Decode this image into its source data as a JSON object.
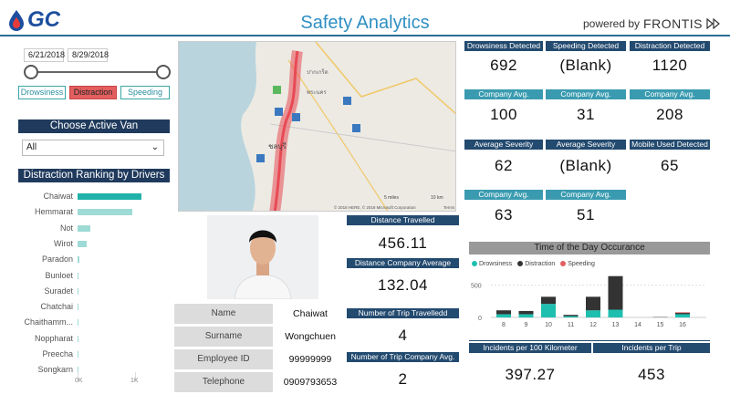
{
  "header": {
    "logo": "GC",
    "title": "Safety Analytics",
    "powered_by": "powered by",
    "brand": "FRONTIS"
  },
  "filters": {
    "date_from": "6/21/2018",
    "date_to": "8/29/2018",
    "buttons": [
      "Drowsiness",
      "Distraction",
      "Speeding"
    ],
    "active": "Distraction"
  },
  "van": {
    "header": "Choose Active Van",
    "selected": "All"
  },
  "ranking": {
    "header": "Distraction Ranking by Drivers",
    "drivers": [
      {
        "name": "Chaiwat",
        "value": 1.0,
        "color": "#20b2aa"
      },
      {
        "name": "Hemmarat",
        "value": 0.85,
        "color": "#9edbd6"
      },
      {
        "name": "Not",
        "value": 0.2,
        "color": "#9edbd6"
      },
      {
        "name": "Wirot",
        "value": 0.14,
        "color": "#9edbd6"
      },
      {
        "name": "Paradon",
        "value": 0.03,
        "color": "#9edbd6"
      },
      {
        "name": "Bunloet",
        "value": 0.02,
        "color": "#9edbd6"
      },
      {
        "name": "Suradet",
        "value": 0.02,
        "color": "#9edbd6"
      },
      {
        "name": "Chatchai",
        "value": 0.01,
        "color": "#9edbd6"
      },
      {
        "name": "Chaithamm...",
        "value": 0.01,
        "color": "#9edbd6"
      },
      {
        "name": "Noppharat",
        "value": 0.01,
        "color": "#9edbd6"
      },
      {
        "name": "Preecha",
        "value": 0.01,
        "color": "#9edbd6"
      },
      {
        "name": "Songkarn",
        "value": 0.0,
        "color": "#9edbd6"
      }
    ],
    "ticks": [
      "0K",
      "1K"
    ]
  },
  "map": {
    "labels": [
      "ปากเกร็ด",
      "พระนคร",
      "ชลบุรี"
    ],
    "scale": [
      "5 miles",
      "10 km"
    ],
    "copyright": "© 2018 HERE, © 2018 Microsoft Corporation",
    "terms": "Terms"
  },
  "driver": {
    "fields": [
      {
        "label": "Name",
        "value": "Chaiwat"
      },
      {
        "label": "Surname",
        "value": "Wongchuen"
      },
      {
        "label": "Employee ID",
        "value": "99999999"
      },
      {
        "label": "Telephone",
        "value": "0909793653"
      }
    ]
  },
  "trip": {
    "distance_label": "Distance Travelled",
    "distance": "456.11",
    "company_label": "Distance Company Average",
    "company": "132.04",
    "trips_label": "Number of Trip Travelledd",
    "trips": "4",
    "trips_company_label": "Number of Trip Company Avg.",
    "trips_company": "2"
  },
  "kpis": [
    {
      "label": "Drowsiness Detected",
      "value": "692",
      "style": "dark"
    },
    {
      "label": "Speeding Detected",
      "value": "(Blank)",
      "style": "dark"
    },
    {
      "label": "Distraction Detected",
      "value": "1120",
      "style": "dark"
    },
    {
      "label": "Company Avg. Detection",
      "value": "100",
      "style": "teal"
    },
    {
      "label": "Company Avg. Detection",
      "value": "31",
      "style": "teal"
    },
    {
      "label": "Company Avg. Detection",
      "value": "208",
      "style": "teal"
    },
    {
      "label": "Average Severity",
      "value": "62",
      "style": "dark"
    },
    {
      "label": "Average Severity",
      "value": "(Blank)",
      "style": "dark"
    },
    {
      "label": "Mobile Used Detected",
      "value": "65",
      "style": "dark"
    },
    {
      "label": "Company Avg. Severity",
      "value": "63",
      "style": "teal"
    },
    {
      "label": "Company Avg. Severity",
      "value": "51",
      "style": "teal"
    }
  ],
  "bottom": {
    "incidents_km_label": "Incidents per 100 Kilometer",
    "incidents_km": "397.27",
    "incidents_trip_label": "Incidents per Trip",
    "incidents_trip": "453"
  },
  "chart_data": {
    "type": "bar",
    "title": "Time of the Day Occurance",
    "categories": [
      "8",
      "9",
      "10",
      "11",
      "12",
      "13",
      "14",
      "15",
      "16"
    ],
    "series": [
      {
        "name": "Drowsiness",
        "color": "#1fbfb0",
        "values": [
          50,
          50,
          210,
          20,
          110,
          120,
          0,
          0,
          50
        ]
      },
      {
        "name": "Distraction",
        "color": "#333333",
        "values": [
          60,
          50,
          110,
          20,
          210,
          520,
          0,
          5,
          20
        ]
      },
      {
        "name": "Speeding",
        "color": "#e35f5f",
        "values": [
          0,
          0,
          0,
          0,
          0,
          0,
          0,
          0,
          10
        ]
      }
    ],
    "yticks": [
      "500",
      "0"
    ],
    "ylim": [
      0,
      650
    ]
  }
}
